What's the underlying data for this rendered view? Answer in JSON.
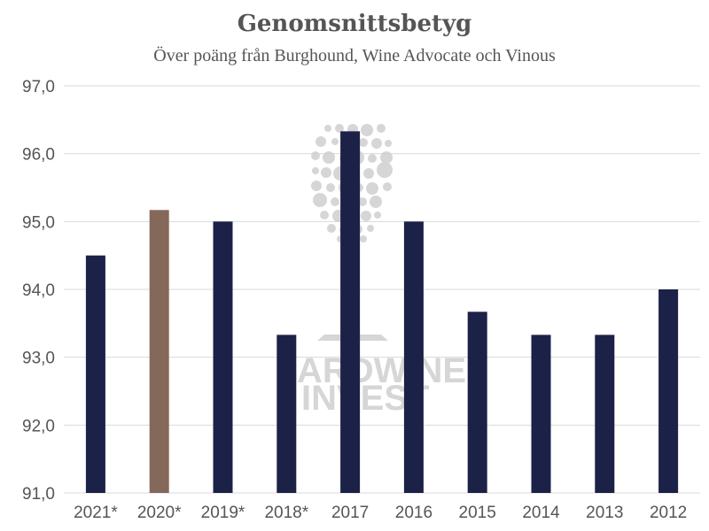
{
  "chart_data": {
    "type": "bar",
    "title": "Genomsnittsbetyg",
    "subtitle": "Över poäng från Burghound, Wine Advocate och Vinous",
    "categories": [
      "2021*",
      "2020*",
      "2019*",
      "2018*",
      "2017",
      "2016",
      "2015",
      "2014",
      "2013",
      "2012"
    ],
    "values": [
      94.5,
      95.17,
      95.0,
      93.33,
      96.33,
      95.0,
      93.67,
      93.33,
      93.33,
      94.0
    ],
    "highlight_index": 1,
    "ylim": [
      91.0,
      97.0
    ],
    "yticks": [
      91,
      92,
      93,
      94,
      95,
      96,
      97
    ],
    "ytick_labels": [
      "91,0",
      "92,0",
      "93,0",
      "94,0",
      "95,0",
      "96,0",
      "97,0"
    ],
    "grid": true,
    "colors": {
      "bar": "#1c2147",
      "highlight": "#84685a",
      "grid": "#d9d9d9",
      "text": "#555555"
    }
  },
  "watermark": {
    "line1": "ARDWINE",
    "line2": "INVEST"
  }
}
